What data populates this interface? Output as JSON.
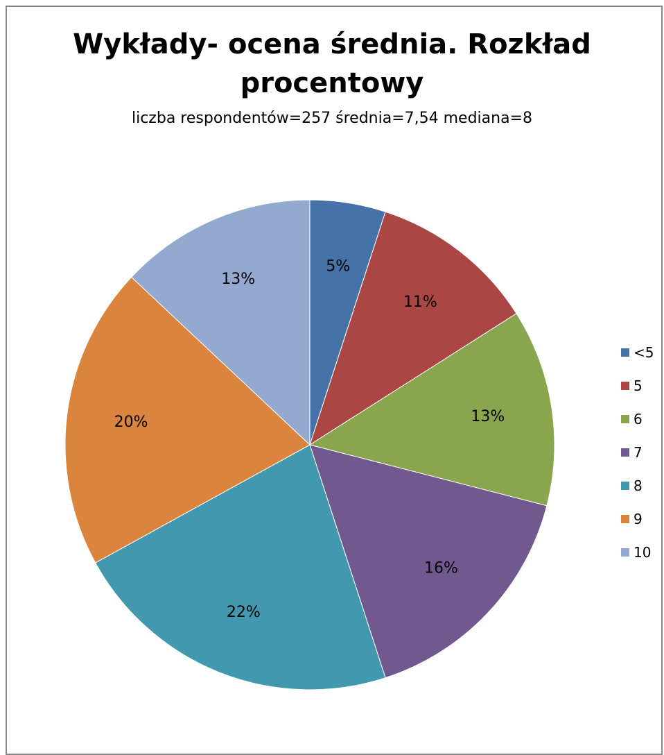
{
  "chart_data": {
    "type": "pie",
    "title_lines": [
      "Wykłady- ocena średnia. Rozkład",
      "procentowy"
    ],
    "subtitle": "liczba respondentów=257 średnia=7,54 mediana=8",
    "categories": [
      "<5",
      "5",
      "6",
      "7",
      "8",
      "9",
      "10"
    ],
    "values": [
      5,
      11,
      13,
      16,
      22,
      20,
      13
    ],
    "data_labels": [
      "5%",
      "11%",
      "13%",
      "16%",
      "22%",
      "20%",
      "13%"
    ],
    "colors": [
      "#4572A7",
      "#AA4643",
      "#89A54E",
      "#71588F",
      "#4198AF",
      "#DB843D",
      "#93A9CF"
    ],
    "start_angle": "12 o'clock",
    "direction": "clockwise",
    "legend_position": "right"
  }
}
